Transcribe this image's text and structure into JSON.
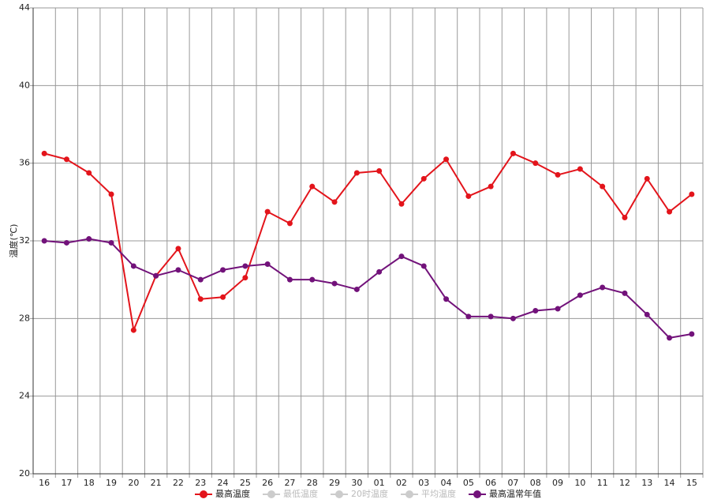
{
  "chart_data": {
    "type": "line",
    "y_label": "温度(℃)",
    "categories": [
      "16",
      "17",
      "18",
      "19",
      "20",
      "21",
      "22",
      "23",
      "24",
      "25",
      "26",
      "27",
      "28",
      "29",
      "30",
      "01",
      "02",
      "03",
      "04",
      "05",
      "06",
      "07",
      "08",
      "09",
      "10",
      "11",
      "12",
      "13",
      "14",
      "15"
    ],
    "series": [
      {
        "name": "最高温度",
        "color": "#e3141b",
        "visible": true,
        "values": [
          36.5,
          36.2,
          35.5,
          34.4,
          27.4,
          30.2,
          31.6,
          29.0,
          29.1,
          30.1,
          33.5,
          32.9,
          34.8,
          34.0,
          35.5,
          35.6,
          33.9,
          35.2,
          36.2,
          34.3,
          34.8,
          36.5,
          36.0,
          35.4,
          35.7,
          34.8,
          33.2,
          35.2,
          33.5,
          34.4
        ]
      },
      {
        "name": "最低温度",
        "color": "#cccccc",
        "visible": false,
        "values": [
          null,
          null,
          null,
          null,
          null,
          null,
          null,
          null,
          null,
          null,
          null,
          null,
          null,
          null,
          null,
          null,
          null,
          null,
          null,
          null,
          null,
          null,
          null,
          null,
          null,
          null,
          null,
          null,
          null,
          null
        ]
      },
      {
        "name": "20时温度",
        "color": "#cccccc",
        "visible": false,
        "values": [
          null,
          null,
          null,
          null,
          null,
          null,
          null,
          null,
          null,
          null,
          null,
          null,
          null,
          null,
          null,
          null,
          null,
          null,
          null,
          null,
          null,
          null,
          null,
          null,
          null,
          null,
          null,
          null,
          null,
          null
        ]
      },
      {
        "name": "平均温度",
        "color": "#cccccc",
        "visible": false,
        "values": [
          null,
          null,
          null,
          null,
          null,
          null,
          null,
          null,
          null,
          null,
          null,
          null,
          null,
          null,
          null,
          null,
          null,
          null,
          null,
          null,
          null,
          null,
          null,
          null,
          null,
          null,
          null,
          null,
          null,
          null
        ]
      },
      {
        "name": "最高温常年值",
        "color": "#72127a",
        "visible": true,
        "values": [
          32.0,
          31.9,
          32.1,
          31.9,
          30.7,
          30.2,
          30.5,
          30.0,
          30.5,
          30.7,
          30.8,
          30.0,
          30.0,
          29.8,
          29.5,
          30.4,
          31.2,
          30.7,
          29.0,
          28.1,
          28.1,
          28.0,
          28.4,
          28.5,
          29.2,
          29.6,
          29.3,
          28.2,
          27.0,
          27.2
        ]
      }
    ],
    "ylim": [
      20,
      44
    ],
    "yticks": [
      20,
      24,
      28,
      32,
      36,
      40,
      44
    ],
    "grid": true,
    "legend": "bottom"
  }
}
